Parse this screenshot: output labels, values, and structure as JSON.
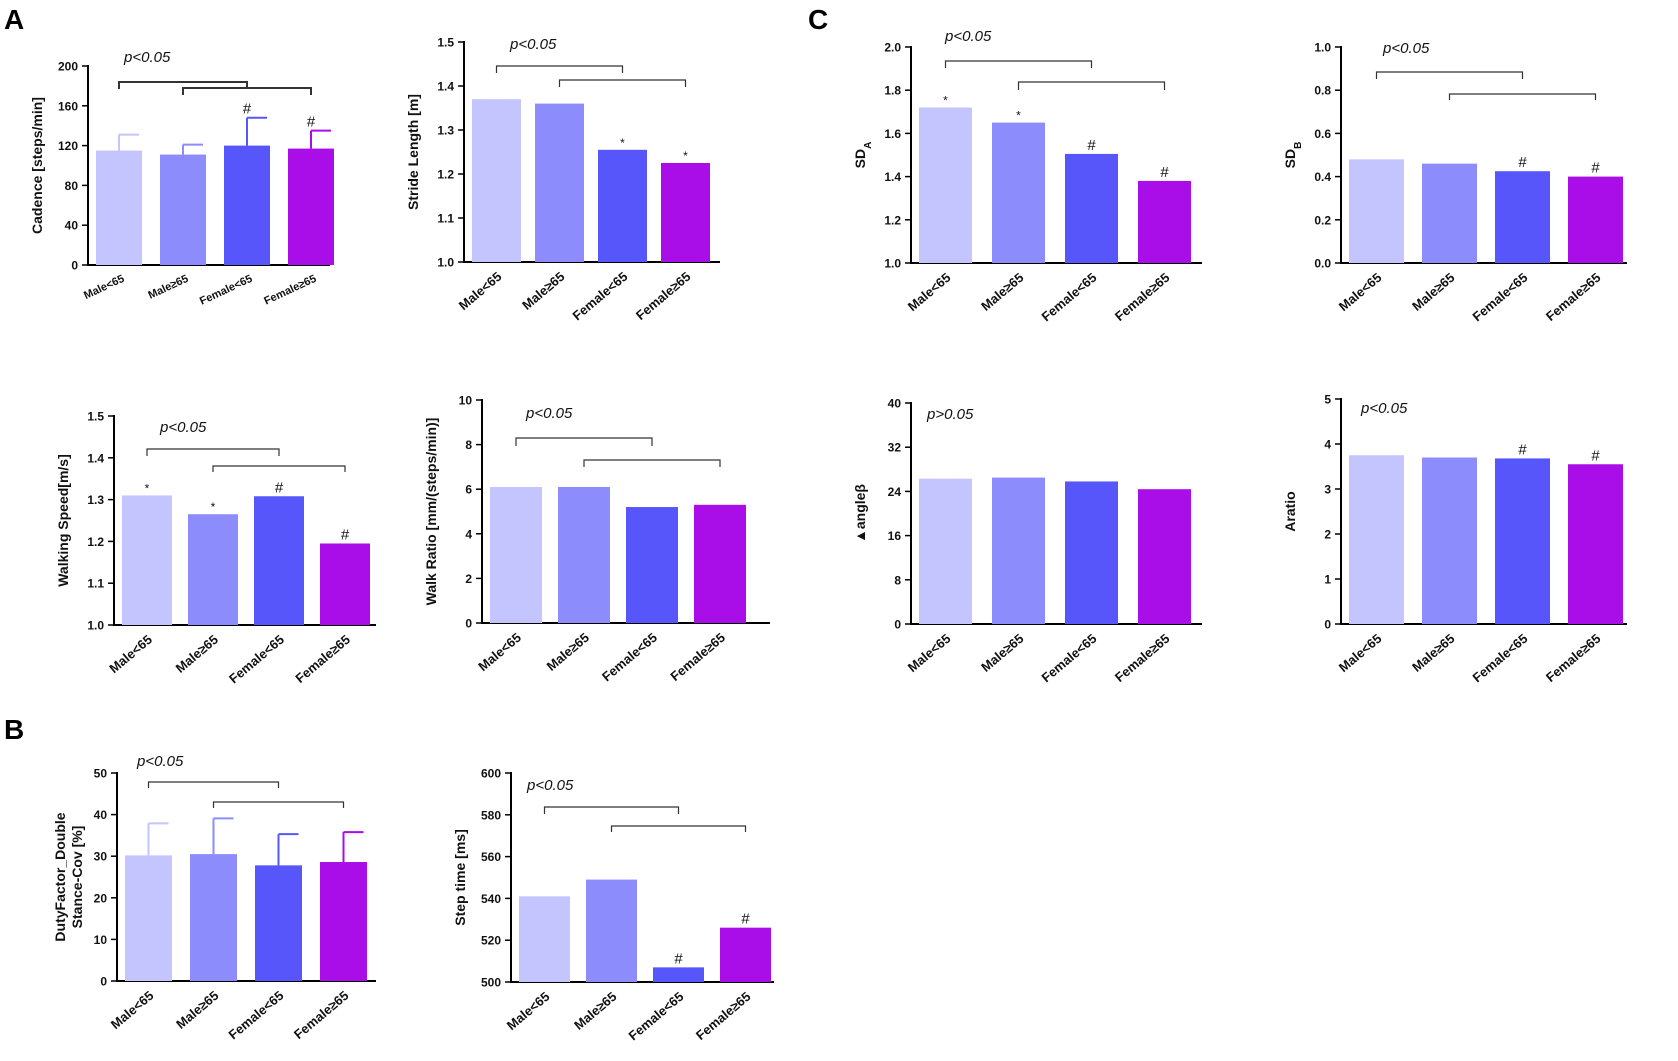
{
  "panel_labels": {
    "a": "A",
    "b": "B",
    "c": "C"
  },
  "colors": {
    "male_lt65": "#c4c4ff",
    "male_ge65": "#8c8cfd",
    "female_lt65": "#5656fb",
    "female_ge65": "#a90ee8",
    "axis": "#000000"
  },
  "chart_data": [
    {
      "id": "cadence",
      "panel": "A",
      "type": "bar",
      "ylabel": "Cadence [steps/min]",
      "categories": [
        "Male<65",
        "Male≥65",
        "Female<65",
        "Female≥65"
      ],
      "values": [
        115,
        111,
        120,
        117
      ],
      "errors": [
        16,
        10,
        28,
        18
      ],
      "markers": [
        "",
        "",
        "#",
        "#"
      ],
      "ylim": [
        0,
        200
      ],
      "yticks": [
        0,
        40,
        80,
        120,
        160,
        200
      ],
      "significance": "p<0.05",
      "tick_angle": -25
    },
    {
      "id": "stride_length",
      "panel": "A",
      "type": "bar",
      "ylabel": "Stride Length [m]",
      "categories": [
        "Male<65",
        "Male≥65",
        "Female<65",
        "Female≥65"
      ],
      "values": [
        1.37,
        1.36,
        1.255,
        1.225
      ],
      "markers": [
        "",
        "",
        "*",
        "*"
      ],
      "ylim": [
        1.0,
        1.5
      ],
      "yticks": [
        "1.0",
        "1.1",
        "1.2",
        "1.3",
        "1.4",
        "1.5"
      ],
      "significance": "p<0.05",
      "tick_angle": -40
    },
    {
      "id": "walking_speed",
      "panel": "A",
      "type": "bar",
      "ylabel": "Walking Speed[m/s]",
      "categories": [
        "Male<65",
        "Male≥65",
        "Female<65",
        "Female≥65"
      ],
      "values": [
        1.31,
        1.265,
        1.308,
        1.195
      ],
      "markers": [
        "*",
        "*",
        "#",
        "#"
      ],
      "ylim": [
        1.0,
        1.5
      ],
      "yticks": [
        "1.0",
        "1.1",
        "1.2",
        "1.3",
        "1.4",
        "1.5"
      ],
      "significance": "p<0.05",
      "tick_angle": -40
    },
    {
      "id": "walk_ratio",
      "panel": "A",
      "type": "bar",
      "ylabel": "Walk Ratio [mm/(steps/min)]",
      "categories": [
        "Male<65",
        "Male≥65",
        "Female<65",
        "Female≥65"
      ],
      "values": [
        6.1,
        6.1,
        5.2,
        5.3
      ],
      "markers": [
        "",
        "",
        "",
        ""
      ],
      "ylim": [
        0,
        10
      ],
      "yticks": [
        0,
        2,
        4,
        6,
        8,
        10
      ],
      "significance": "p<0.05",
      "tick_angle": -40
    },
    {
      "id": "duty_factor",
      "panel": "B",
      "type": "bar",
      "ylabel": "DutyFactor_Double Stance-Cov [%]",
      "ylabel_lines": [
        "DutyFactor_Double",
        "Stance-Cov [%]"
      ],
      "categories": [
        "Male<65",
        "Male≥65",
        "Female<65",
        "Female≥65"
      ],
      "values": [
        30.2,
        30.5,
        27.8,
        28.6
      ],
      "errors": [
        7.7,
        8.6,
        7.5,
        7.2
      ],
      "markers": [
        "",
        "",
        "",
        ""
      ],
      "ylim": [
        0,
        50
      ],
      "yticks": [
        0,
        10,
        20,
        30,
        40,
        50
      ],
      "significance": "p<0.05",
      "tick_angle": -40
    },
    {
      "id": "step_time",
      "panel": "B",
      "type": "bar",
      "ylabel": "Step time [ms]",
      "categories": [
        "Male<65",
        "Male≥65",
        "Female<65",
        "Female≥65"
      ],
      "values": [
        541,
        549,
        507,
        526
      ],
      "markers": [
        "",
        "",
        "#",
        "#"
      ],
      "ylim": [
        500,
        600
      ],
      "yticks": [
        500,
        520,
        540,
        560,
        580,
        600
      ],
      "significance": "p<0.05",
      "tick_angle": -40
    },
    {
      "id": "sd_a",
      "panel": "C",
      "type": "bar",
      "ylabel": "SD",
      "ylabel_sub": "A",
      "categories": [
        "Male<65",
        "Male≥65",
        "Female<65",
        "Female≥65"
      ],
      "values": [
        1.72,
        1.65,
        1.505,
        1.38
      ],
      "markers": [
        "*",
        "*",
        "#",
        "#"
      ],
      "ylim": [
        1.0,
        2.0
      ],
      "yticks": [
        "1.0",
        "1.2",
        "1.4",
        "1.6",
        "1.8",
        "2.0"
      ],
      "significance": "p<0.05",
      "tick_angle": -40
    },
    {
      "id": "sd_b",
      "panel": "C",
      "type": "bar",
      "ylabel": "SD",
      "ylabel_sub": "B",
      "categories": [
        "Male<65",
        "Male≥65",
        "Female<65",
        "Female≥65"
      ],
      "values": [
        0.48,
        0.46,
        0.425,
        0.4
      ],
      "markers": [
        "",
        "",
        "#",
        "#"
      ],
      "ylim": [
        0.0,
        1.0
      ],
      "yticks": [
        "0.0",
        "0.2",
        "0.4",
        "0.6",
        "0.8",
        "1.0"
      ],
      "significance": "p<0.05",
      "tick_angle": -40
    },
    {
      "id": "angle_beta",
      "panel": "C",
      "type": "bar",
      "ylabel": "▲angleβ",
      "categories": [
        "Male<65",
        "Male≥65",
        "Female<65",
        "Female≥65"
      ],
      "values": [
        26.3,
        26.5,
        25.8,
        24.4
      ],
      "markers": [
        "",
        "",
        "",
        ""
      ],
      "ylim": [
        0,
        40
      ],
      "yticks": [
        0,
        8,
        16,
        24,
        32,
        40
      ],
      "significance": "p>0.05",
      "tick_angle": -40
    },
    {
      "id": "aratio",
      "panel": "C",
      "type": "bar",
      "ylabel": "Aratio",
      "categories": [
        "Male<65",
        "Male≥65",
        "Female<65",
        "Female≥65"
      ],
      "values": [
        3.75,
        3.7,
        3.68,
        3.55
      ],
      "markers": [
        "",
        "",
        "#",
        "#"
      ],
      "ylim": [
        0,
        5
      ],
      "yticks": [
        0,
        1,
        2,
        3,
        4,
        5
      ],
      "significance": "p<0.05",
      "tick_angle": -40
    }
  ]
}
